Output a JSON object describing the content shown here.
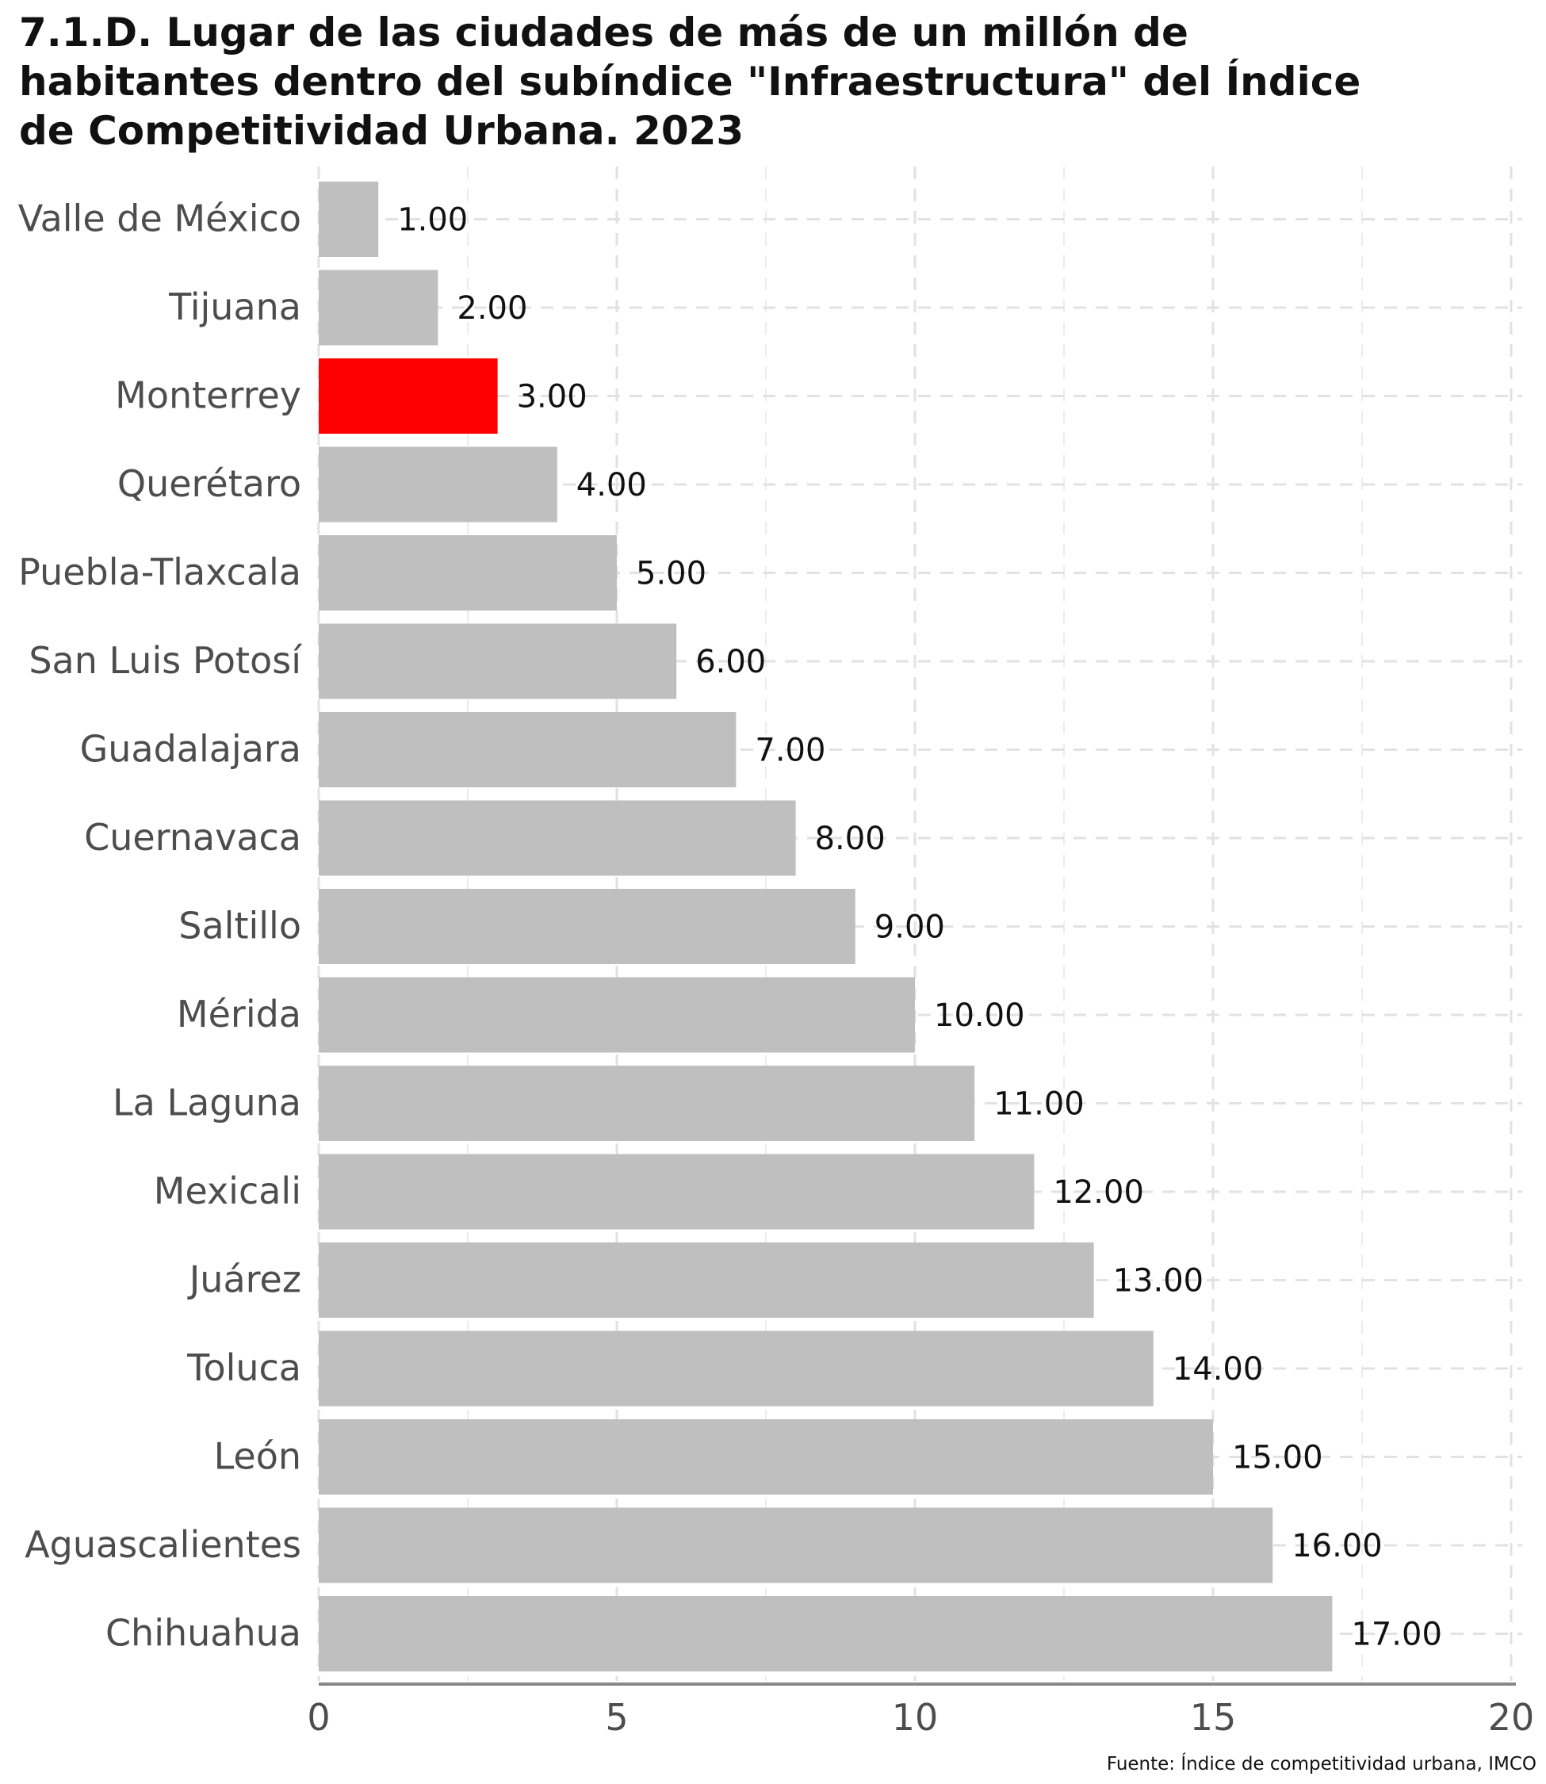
{
  "chart_data": {
    "type": "bar",
    "orientation": "horizontal",
    "title_lines": [
      "7.1.D. Lugar de las ciudades de más de un millón de",
      "habitantes dentro del subíndice \"Infraestructura\" del Índice",
      "de Competitividad Urbana. 2023"
    ],
    "categories": [
      "Valle de México",
      "Tijuana",
      "Monterrey",
      "Querétaro",
      "Puebla-Tlaxcala",
      "San Luis Potosí",
      "Guadalajara",
      "Cuernavaca",
      "Saltillo",
      "Mérida",
      "La Laguna",
      "Mexicali",
      "Juárez",
      "Toluca",
      "León",
      "Aguascalientes",
      "Chihuahua"
    ],
    "values": [
      1,
      2,
      3,
      4,
      5,
      6,
      7,
      8,
      9,
      10,
      11,
      12,
      13,
      14,
      15,
      16,
      17
    ],
    "value_labels": [
      "1.00",
      "2.00",
      "3.00",
      "4.00",
      "5.00",
      "6.00",
      "7.00",
      "8.00",
      "9.00",
      "10.00",
      "11.00",
      "12.00",
      "13.00",
      "14.00",
      "15.00",
      "16.00",
      "17.00"
    ],
    "highlight": "Monterrey",
    "colors": {
      "default": "#bfbfbf",
      "highlight": "#ff0000"
    },
    "xlim": [
      0,
      20
    ],
    "xticks": [
      0,
      5,
      10,
      15,
      20
    ],
    "xlabel": "",
    "ylabel": "",
    "grid": true,
    "source": "Fuente: Índice de competitividad urbana, IMCO"
  }
}
